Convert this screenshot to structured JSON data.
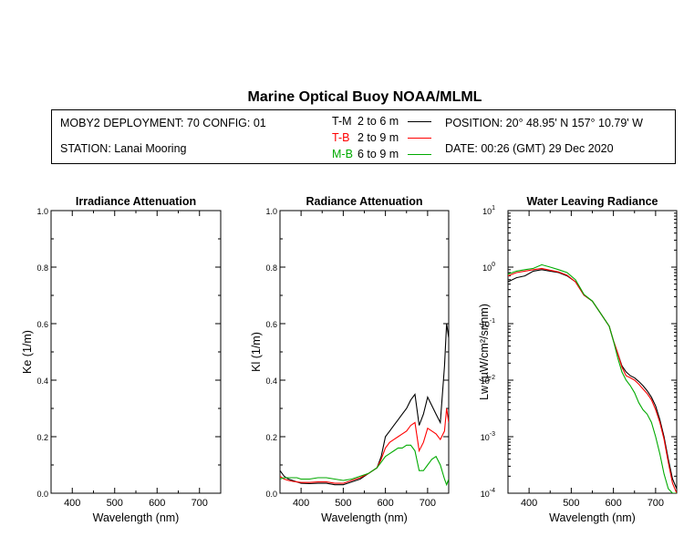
{
  "title": "Marine Optical Buoy NOAA/MLML",
  "info": {
    "deployment": "MOBY2 DEPLOYMENT: 70 CONFIG: 01",
    "station": "STATION: Lanai Mooring",
    "position": "POSITION: 20° 48.95' N   157° 10.79' W",
    "date": "DATE: 00:26 (GMT) 29 Dec 2020"
  },
  "legend": [
    {
      "code": "T-M",
      "range": "2 to 6  m",
      "color": "#000000"
    },
    {
      "code": "T-B",
      "range": "2 to 9  m",
      "color": "#ff0000"
    },
    {
      "code": "M-B",
      "range": "6 to 9  m",
      "color": "#00aa00"
    }
  ],
  "chart_data": [
    {
      "type": "line",
      "title": "Irradiance Attenuation",
      "xlabel": "Wavelength (nm)",
      "ylabel": "Ke  (1/m)",
      "xlim": [
        350,
        750
      ],
      "ylim": [
        0,
        1.0
      ],
      "xticks": [
        "400",
        "500",
        "600",
        "700"
      ],
      "yticks": [
        "0.0",
        "0.2",
        "0.4",
        "0.6",
        "0.8",
        "1.0"
      ],
      "series": []
    },
    {
      "type": "line",
      "title": "Radiance Attenuation",
      "xlabel": "Wavelength (nm)",
      "ylabel": "Kl  (1/m)",
      "xlim": [
        350,
        750
      ],
      "ylim": [
        0,
        1.0
      ],
      "xticks": [
        "400",
        "500",
        "600",
        "700"
      ],
      "yticks": [
        "0.0",
        "0.2",
        "0.4",
        "0.6",
        "0.8",
        "1.0"
      ],
      "series": [
        {
          "name": "T-M",
          "color": "#000000",
          "x": [
            350,
            360,
            370,
            380,
            390,
            400,
            420,
            440,
            460,
            480,
            500,
            520,
            540,
            560,
            580,
            590,
            600,
            610,
            620,
            630,
            640,
            650,
            660,
            670,
            680,
            690,
            700,
            710,
            720,
            730,
            740,
            745,
            750
          ],
          "y": [
            0.08,
            0.06,
            0.05,
            0.045,
            0.04,
            0.035,
            0.034,
            0.035,
            0.035,
            0.03,
            0.03,
            0.04,
            0.05,
            0.07,
            0.09,
            0.13,
            0.2,
            0.22,
            0.24,
            0.26,
            0.28,
            0.3,
            0.33,
            0.35,
            0.24,
            0.28,
            0.34,
            0.31,
            0.28,
            0.25,
            0.45,
            0.6,
            0.55
          ]
        },
        {
          "name": "T-B",
          "color": "#ff0000",
          "x": [
            350,
            360,
            370,
            380,
            390,
            400,
            420,
            440,
            460,
            480,
            500,
            520,
            540,
            560,
            580,
            590,
            600,
            610,
            620,
            630,
            640,
            650,
            660,
            670,
            680,
            690,
            700,
            710,
            720,
            730,
            740,
            745,
            750
          ],
          "y": [
            0.06,
            0.05,
            0.045,
            0.042,
            0.04,
            0.038,
            0.038,
            0.04,
            0.04,
            0.035,
            0.035,
            0.045,
            0.055,
            0.07,
            0.09,
            0.12,
            0.16,
            0.18,
            0.19,
            0.2,
            0.21,
            0.22,
            0.24,
            0.25,
            0.15,
            0.18,
            0.23,
            0.22,
            0.21,
            0.19,
            0.22,
            0.3,
            0.25
          ]
        },
        {
          "name": "M-B",
          "color": "#00aa00",
          "x": [
            350,
            360,
            370,
            380,
            390,
            400,
            420,
            440,
            460,
            480,
            500,
            520,
            540,
            560,
            580,
            590,
            600,
            610,
            620,
            630,
            640,
            650,
            660,
            670,
            680,
            690,
            700,
            710,
            720,
            730,
            740,
            745,
            750
          ],
          "y": [
            0.05,
            0.055,
            0.055,
            0.055,
            0.055,
            0.05,
            0.05,
            0.055,
            0.055,
            0.05,
            0.045,
            0.05,
            0.06,
            0.07,
            0.09,
            0.11,
            0.13,
            0.14,
            0.15,
            0.16,
            0.16,
            0.17,
            0.17,
            0.15,
            0.08,
            0.08,
            0.1,
            0.12,
            0.13,
            0.1,
            0.05,
            0.03,
            0.05
          ]
        }
      ]
    },
    {
      "type": "line",
      "title": "Water Leaving Radiance",
      "xlabel": "Wavelength (nm)",
      "ylabel": "Lw  (µW/cm²/sr/nm)",
      "xlim": [
        350,
        750
      ],
      "ylim": [
        0.0001,
        10
      ],
      "yscale": "log",
      "xticks": [
        "400",
        "500",
        "600",
        "700"
      ],
      "yticks": [
        "10^1",
        "10^0",
        "10^-1",
        "10^-2",
        "10^-3",
        "10^-4"
      ],
      "series": [
        {
          "name": "T-M",
          "color": "#000000",
          "x": [
            350,
            370,
            390,
            410,
            430,
            450,
            470,
            490,
            510,
            530,
            550,
            570,
            590,
            600,
            610,
            620,
            630,
            640,
            650,
            660,
            670,
            680,
            690,
            700,
            710,
            720,
            730,
            740,
            750
          ],
          "y": [
            0.55,
            0.65,
            0.7,
            0.85,
            0.9,
            0.85,
            0.8,
            0.7,
            0.55,
            0.32,
            0.25,
            0.15,
            0.09,
            0.05,
            0.03,
            0.018,
            0.014,
            0.012,
            0.011,
            0.0095,
            0.008,
            0.0065,
            0.005,
            0.0035,
            0.002,
            0.001,
            0.0004,
            0.00018,
            0.00012
          ]
        },
        {
          "name": "T-B",
          "color": "#ff0000",
          "x": [
            350,
            370,
            390,
            410,
            430,
            450,
            470,
            490,
            510,
            530,
            550,
            570,
            590,
            600,
            610,
            620,
            630,
            640,
            650,
            660,
            670,
            680,
            690,
            700,
            710,
            720,
            730,
            740,
            750
          ],
          "y": [
            0.7,
            0.8,
            0.85,
            0.9,
            0.95,
            0.88,
            0.82,
            0.72,
            0.55,
            0.32,
            0.25,
            0.15,
            0.09,
            0.05,
            0.03,
            0.017,
            0.012,
            0.011,
            0.01,
            0.0085,
            0.007,
            0.0058,
            0.0045,
            0.003,
            0.0018,
            0.0009,
            0.00035,
            0.00015,
            0.0001
          ]
        },
        {
          "name": "M-B",
          "color": "#00aa00",
          "x": [
            350,
            370,
            390,
            410,
            430,
            450,
            470,
            490,
            510,
            530,
            550,
            570,
            590,
            600,
            610,
            620,
            630,
            640,
            650,
            660,
            670,
            680,
            690,
            700,
            710,
            720,
            730,
            740,
            750
          ],
          "y": [
            0.75,
            0.85,
            0.9,
            0.95,
            1.1,
            1.0,
            0.9,
            0.8,
            0.6,
            0.33,
            0.25,
            0.15,
            0.09,
            0.05,
            0.025,
            0.014,
            0.01,
            0.008,
            0.006,
            0.004,
            0.003,
            0.0025,
            0.0018,
            0.001,
            0.0005,
            0.00022,
            0.00012,
            0.0001,
            0.0001
          ]
        }
      ]
    }
  ]
}
